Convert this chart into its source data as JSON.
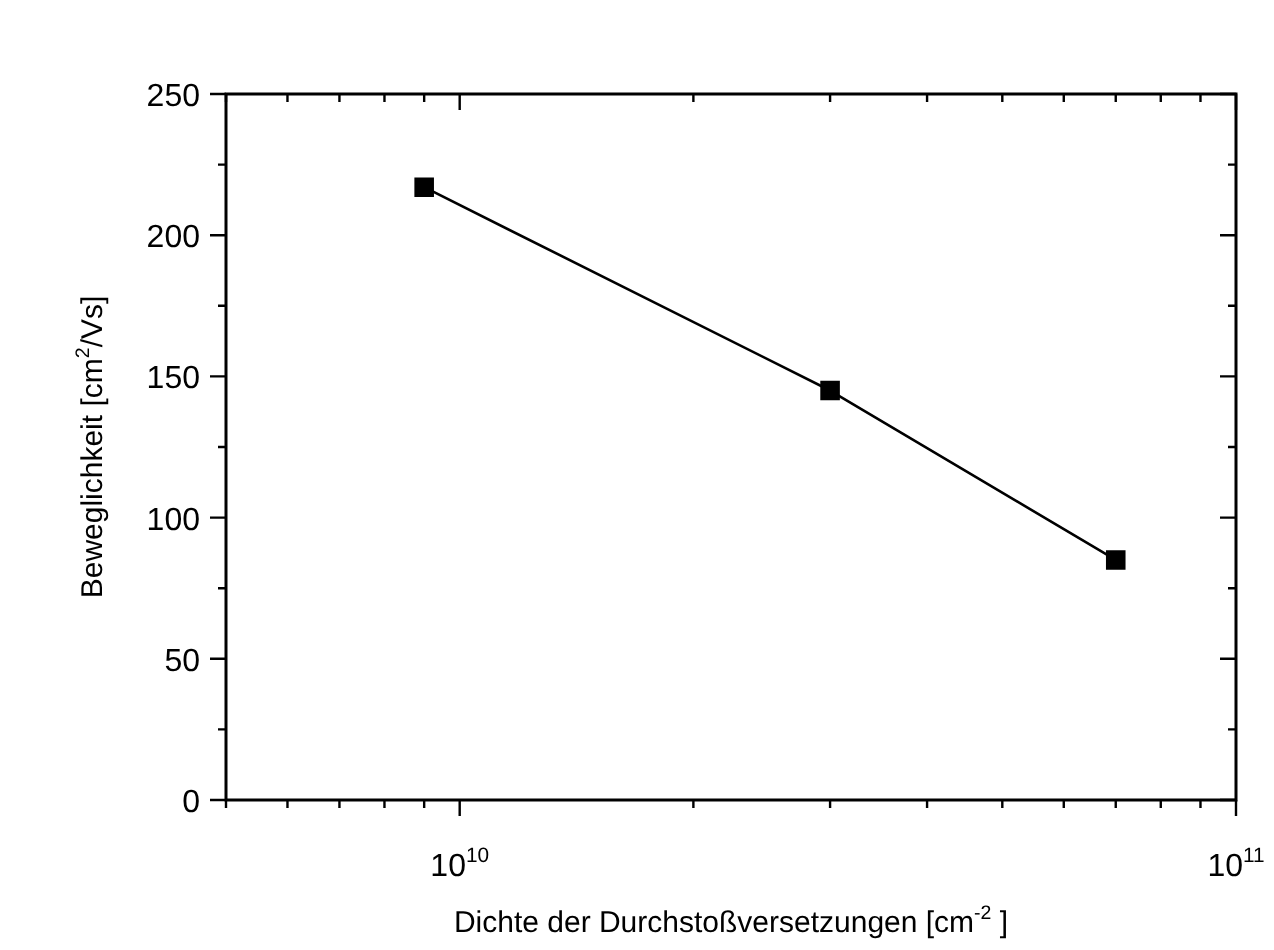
{
  "chart_data": {
    "type": "line",
    "xlabel": "Dichte der Durchstoßversetzungen [cm$^{-2}$ ]",
    "ylabel": "Beweglichkeit [cm$^{2}$/Vs]",
    "log": "x",
    "x": [
      9000000000.0,
      30000000000.0,
      70000000000.0
    ],
    "series": [
      {
        "color": "#000000",
        "values": [
          217,
          145,
          85
        ]
      }
    ],
    "marker": "square",
    "line_style": "solid",
    "grid": false,
    "legend": false,
    "xlim": [
      5000000000.0,
      100000000000.0
    ],
    "xticks": [
      {
        "value": 5000000000.0,
        "label": null
      },
      {
        "value": 6000000000.0,
        "label": null
      },
      {
        "value": 7000000000.0,
        "label": null
      },
      {
        "value": 8000000000.0,
        "label": null
      },
      {
        "value": 9000000000.0,
        "label": null
      },
      {
        "value": 10000000000.0,
        "label": "10$^{10}$"
      },
      {
        "value": 20000000000.0,
        "label": null
      },
      {
        "value": 30000000000.0,
        "label": null
      },
      {
        "value": 40000000000.0,
        "label": null
      },
      {
        "value": 50000000000.0,
        "label": null
      },
      {
        "value": 60000000000.0,
        "label": null
      },
      {
        "value": 70000000000.0,
        "label": null
      },
      {
        "value": 80000000000.0,
        "label": null
      },
      {
        "value": 90000000000.0,
        "label": null
      },
      {
        "value": 100000000000.0,
        "label": "10$^{11}$"
      }
    ],
    "ylim": [
      0,
      250
    ],
    "yticks": [
      0,
      {
        "value": 25,
        "label": null
      },
      50,
      {
        "value": 75,
        "label": null
      },
      100,
      {
        "value": 125,
        "label": null
      },
      150,
      {
        "value": 175,
        "label": null
      },
      200,
      {
        "value": 225,
        "label": null
      },
      250
    ]
  }
}
